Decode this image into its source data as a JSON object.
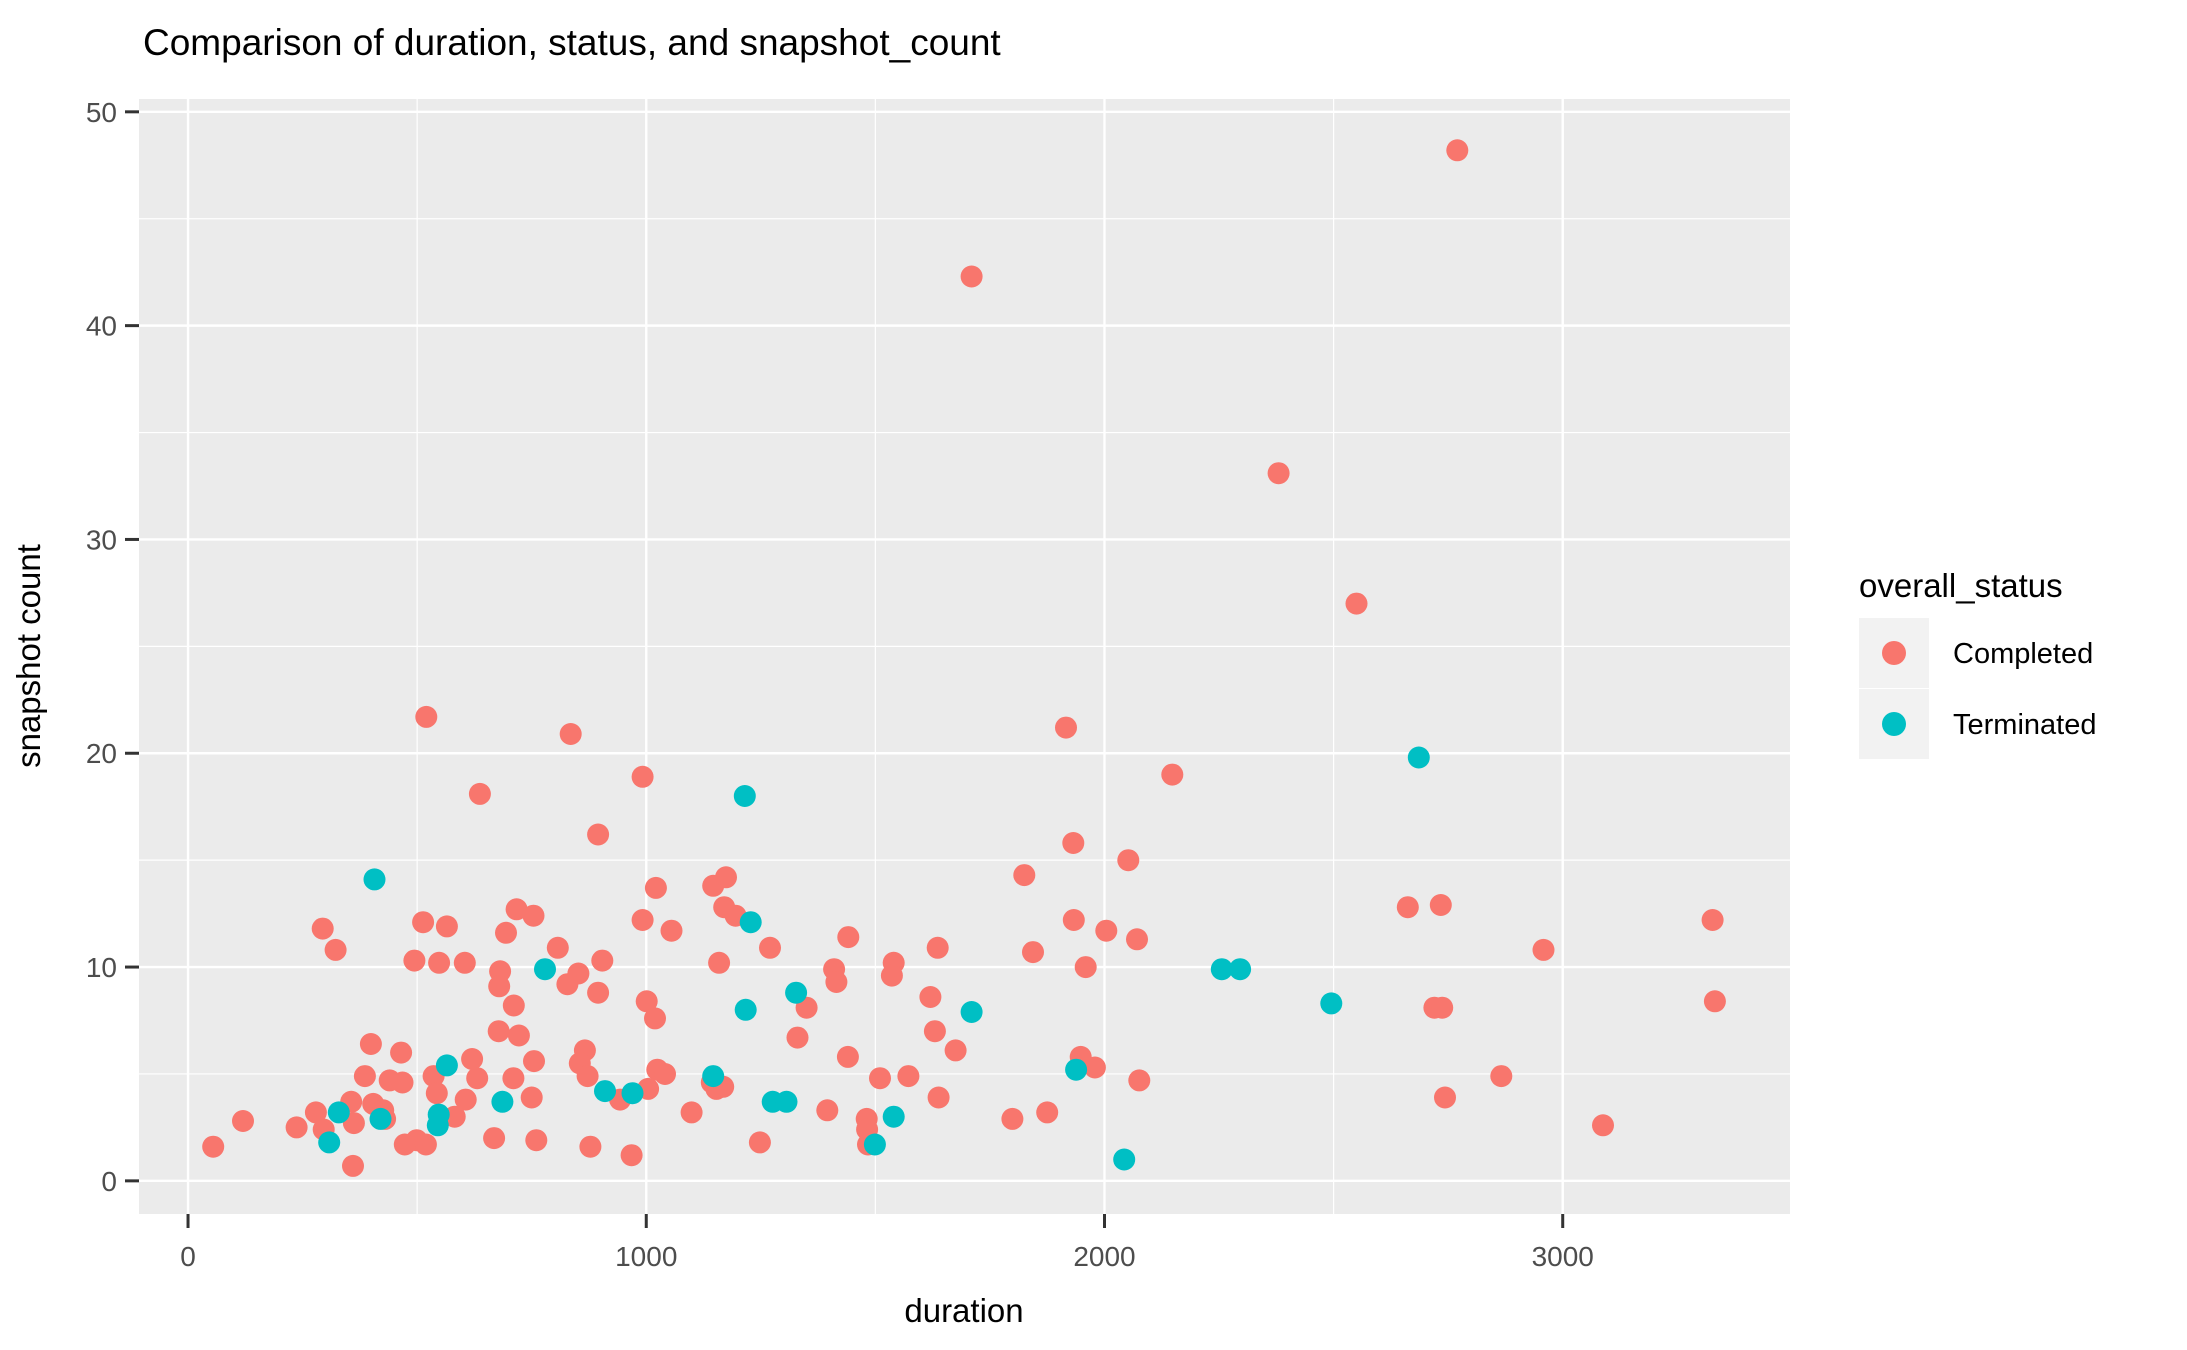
{
  "chart_data": {
    "type": "scatter",
    "title": "Comparison of duration, status, and snapshot_count",
    "xlabel": "duration",
    "ylabel": "snapshot count",
    "legend_title": "overall_status",
    "legend_position": "right",
    "grid": true,
    "panel_color": "#EBEBEB",
    "grid_color": "#FFFFFF",
    "tick_color": "#333333",
    "tick_text_color": "#4D4D4D",
    "xlim": [
      -107,
      3496
    ],
    "ylim": [
      -1.55,
      50.6
    ],
    "x_ticks": [
      0,
      1000,
      2000,
      3000
    ],
    "x_tick_labels": [
      "0",
      "1000",
      "2000",
      "3000"
    ],
    "x_minor_ticks": [
      500,
      1500,
      2500
    ],
    "y_ticks": [
      0,
      10,
      20,
      30,
      40,
      50
    ],
    "y_tick_labels": [
      "0",
      "10",
      "20",
      "30",
      "40",
      "50"
    ],
    "y_minor_ticks": [
      5,
      15,
      25,
      35,
      45
    ],
    "point_radius": 11,
    "series": [
      {
        "name": "Completed",
        "color": "#F8766D",
        "points": [
          [
            2770,
            48.2
          ],
          [
            1710,
            42.3
          ],
          [
            2380,
            33.1
          ],
          [
            2550,
            27.0
          ],
          [
            520,
            21.7
          ],
          [
            1916,
            21.2
          ],
          [
            835,
            20.9
          ],
          [
            2148,
            19.0
          ],
          [
            992,
            18.9
          ],
          [
            637,
            18.1
          ],
          [
            895,
            16.2
          ],
          [
            1932,
            15.8
          ],
          [
            2052,
            15.0
          ],
          [
            1825,
            14.3
          ],
          [
            1174,
            14.2
          ],
          [
            1146,
            13.8
          ],
          [
            1021,
            13.7
          ],
          [
            1170,
            12.8
          ],
          [
            1195,
            12.4
          ],
          [
            717,
            12.7
          ],
          [
            754,
            12.4
          ],
          [
            294,
            11.8
          ],
          [
            513,
            12.1
          ],
          [
            565,
            11.9
          ],
          [
            694,
            11.6
          ],
          [
            992,
            12.2
          ],
          [
            1933,
            12.2
          ],
          [
            2004,
            11.7
          ],
          [
            1055,
            11.7
          ],
          [
            1441,
            11.4
          ],
          [
            2662,
            12.8
          ],
          [
            2734,
            12.9
          ],
          [
            3327,
            12.2
          ],
          [
            2958,
            10.8
          ],
          [
            322,
            10.8
          ],
          [
            807,
            10.9
          ],
          [
            1270,
            10.9
          ],
          [
            1636,
            10.9
          ],
          [
            494,
            10.3
          ],
          [
            548,
            10.2
          ],
          [
            604,
            10.2
          ],
          [
            904,
            10.3
          ],
          [
            1159,
            10.2
          ],
          [
            1540,
            10.2
          ],
          [
            1410,
            9.9
          ],
          [
            2071,
            11.3
          ],
          [
            1844,
            10.7
          ],
          [
            1959,
            10.0
          ],
          [
            852,
            9.7
          ],
          [
            1536,
            9.6
          ],
          [
            828,
            9.2
          ],
          [
            1415,
            9.3
          ],
          [
            681,
            9.8
          ],
          [
            679,
            9.1
          ],
          [
            895,
            8.8
          ],
          [
            1620,
            8.6
          ],
          [
            1001,
            8.4
          ],
          [
            711,
            8.2
          ],
          [
            2720,
            8.1
          ],
          [
            2737,
            8.1
          ],
          [
            3332,
            8.4
          ],
          [
            1350,
            8.1
          ],
          [
            1019,
            7.6
          ],
          [
            1630,
            7.0
          ],
          [
            678,
            7.0
          ],
          [
            722,
            6.8
          ],
          [
            1330,
            6.7
          ],
          [
            399,
            6.4
          ],
          [
            1675,
            6.1
          ],
          [
            866,
            6.1
          ],
          [
            465,
            6.0
          ],
          [
            620,
            5.7
          ],
          [
            1948,
            5.8
          ],
          [
            755,
            5.6
          ],
          [
            855,
            5.5
          ],
          [
            1440,
            5.8
          ],
          [
            1979,
            5.3
          ],
          [
            1024,
            5.2
          ],
          [
            1041,
            5.0
          ],
          [
            872,
            4.9
          ],
          [
            536,
            4.9
          ],
          [
            386,
            4.9
          ],
          [
            1572,
            4.9
          ],
          [
            2866,
            4.9
          ],
          [
            631,
            4.8
          ],
          [
            710,
            4.8
          ],
          [
            1510,
            4.8
          ],
          [
            2076,
            4.7
          ],
          [
            440,
            4.7
          ],
          [
            468,
            4.6
          ],
          [
            1143,
            4.6
          ],
          [
            1168,
            4.4
          ],
          [
            1153,
            4.3
          ],
          [
            1004,
            4.3
          ],
          [
            543,
            4.1
          ],
          [
            750,
            3.9
          ],
          [
            606,
            3.8
          ],
          [
            943,
            3.8
          ],
          [
            2743,
            3.9
          ],
          [
            1638,
            3.9
          ],
          [
            356,
            3.7
          ],
          [
            404,
            3.6
          ],
          [
            1395,
            3.3
          ],
          [
            426,
            3.3
          ],
          [
            279,
            3.2
          ],
          [
            1099,
            3.2
          ],
          [
            582,
            3.0
          ],
          [
            1875,
            3.2
          ],
          [
            1481,
            2.9
          ],
          [
            430,
            2.9
          ],
          [
            1799,
            2.9
          ],
          [
            120,
            2.8
          ],
          [
            362,
            2.7
          ],
          [
            3088,
            2.6
          ],
          [
            237,
            2.5
          ],
          [
            296,
            2.4
          ],
          [
            1482,
            2.4
          ],
          [
            668,
            2.0
          ],
          [
            499,
            1.9
          ],
          [
            760,
            1.9
          ],
          [
            473,
            1.7
          ],
          [
            519,
            1.7
          ],
          [
            1484,
            1.7
          ],
          [
            1248,
            1.8
          ],
          [
            878,
            1.6
          ],
          [
            55,
            1.6
          ],
          [
            968,
            1.2
          ],
          [
            360,
            0.7
          ]
        ]
      },
      {
        "name": "Terminated",
        "color": "#00BFC4",
        "points": [
          [
            2686,
            19.8
          ],
          [
            1215,
            18.0
          ],
          [
            407,
            14.1
          ],
          [
            1228,
            12.1
          ],
          [
            779,
            9.9
          ],
          [
            2256,
            9.9
          ],
          [
            2296,
            9.9
          ],
          [
            1327,
            8.8
          ],
          [
            2495,
            8.3
          ],
          [
            1217,
            8.0
          ],
          [
            1710,
            7.9
          ],
          [
            565,
            5.4
          ],
          [
            1938,
            5.2
          ],
          [
            1146,
            4.9
          ],
          [
            910,
            4.2
          ],
          [
            970,
            4.1
          ],
          [
            1276,
            3.7
          ],
          [
            1306,
            3.7
          ],
          [
            686,
            3.7
          ],
          [
            329,
            3.2
          ],
          [
            420,
            2.9
          ],
          [
            547,
            3.1
          ],
          [
            545,
            2.6
          ],
          [
            1540,
            3.0
          ],
          [
            308,
            1.8
          ],
          [
            1499,
            1.7
          ],
          [
            2043,
            1.0
          ]
        ]
      }
    ]
  }
}
